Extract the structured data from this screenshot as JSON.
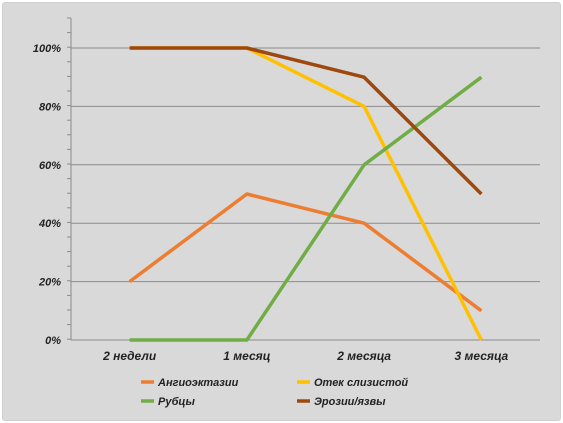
{
  "chart_data": {
    "type": "line",
    "categories": [
      "2 недели",
      "1 месяц",
      "2 месяца",
      "3 месяца"
    ],
    "ylim": [
      0,
      100
    ],
    "yticks": [
      0,
      20,
      40,
      60,
      80,
      100
    ],
    "ytick_labels": [
      "0%",
      "20%",
      "40%",
      "60%",
      "80%",
      "100%"
    ],
    "grid": true,
    "legend_position": "bottom",
    "series": [
      {
        "name": "Ангиоэктазии",
        "color": "#ed7d31",
        "values": [
          20,
          50,
          40,
          10
        ]
      },
      {
        "name": "Отек слизистой",
        "color": "#ffc000",
        "values": [
          100,
          100,
          80,
          0
        ]
      },
      {
        "name": "Рубцы",
        "color": "#70ad47",
        "values": [
          0,
          0,
          60,
          90
        ]
      },
      {
        "name": "Эрозии/язвы",
        "color": "#9e480e",
        "values": [
          100,
          100,
          90,
          50
        ]
      }
    ]
  }
}
